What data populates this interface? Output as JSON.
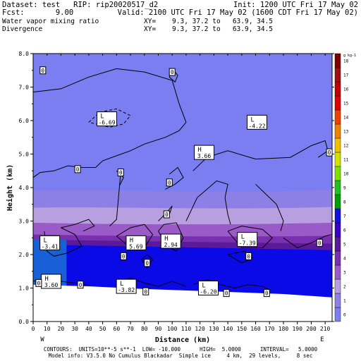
{
  "header": {
    "line1_left": "Dataset: test   RIP: rip20020517_d2",
    "line1_right": "Init: 1200 UTC Fri 17 May 02",
    "line2_left": "Fcst:       9.00",
    "line2_right": "Valid: 2100 UTC Fri 17 May 02 (1600 CDT Fri 17 May 02)",
    "line3_left": "Water vapor mixing ratio",
    "line3_right": "XY=    9.3, 37.2 to   63.9, 34.5",
    "line4_left": "Divergence",
    "line4_right": "XY=    9.3, 37.2 to   63.9, 34.5"
  },
  "chart_data": {
    "type": "heatmap",
    "xlabel": "Distance (km)",
    "ylabel": "Height (km)",
    "xlim": [
      0,
      215
    ],
    "ylim": [
      0,
      8
    ],
    "x_ticks": [
      "0",
      "10",
      "20",
      "30",
      "40",
      "50",
      "60",
      "70",
      "80",
      "90",
      "100",
      "110",
      "120",
      "130",
      "140",
      "150",
      "160",
      "170",
      "180",
      "190",
      "200",
      "210"
    ],
    "y_ticks": [
      "0.0",
      "1.0",
      "2.0",
      "3.0",
      "4.0",
      "5.0",
      "6.0",
      "7.0",
      "8.0"
    ],
    "x_end_labels": {
      "left": "W",
      "right": "E"
    },
    "colorbar": {
      "unit_label": "g kg-1",
      "levels": [
        "0",
        "1",
        "2",
        "3",
        "4",
        "5",
        "6",
        "7",
        "8",
        "9",
        "10",
        "11",
        "12",
        "13",
        "14",
        "15",
        "16",
        "17",
        "18"
      ],
      "colors": [
        "#7a7ef0",
        "#8e7fe6",
        "#b8a0e0",
        "#9a5ac8",
        "#7a2fb0",
        "#5a1a9a",
        "#3a00c8",
        "#1010e0",
        "#00a000",
        "#20c020",
        "#80e000",
        "#d0e000",
        "#f0c000",
        "#f08000",
        "#f04000",
        "#e00000",
        "#c00000",
        "#a01010",
        "#800000"
      ]
    },
    "field_bands_top_km": {
      "0-1": 8.0,
      "1-2": 3.9,
      "2-3": 3.4,
      "3-4": 2.95,
      "4-5": 2.6,
      "5-6": 2.45,
      "6-7": 2.3
    },
    "extrema_labels": [
      {
        "kind": "L",
        "value": "-6.69",
        "x": 53,
        "y": 6.05
      },
      {
        "kind": "L",
        "value": "-4.22",
        "x": 161,
        "y": 5.95
      },
      {
        "kind": "H",
        "value": "3.66",
        "x": 123,
        "y": 5.05
      },
      {
        "kind": "L",
        "value": "-3.41",
        "x": 12,
        "y": 2.35
      },
      {
        "kind": "H",
        "value": "5.69",
        "x": 74,
        "y": 2.35
      },
      {
        "kind": "H",
        "value": "2.94",
        "x": 99,
        "y": 2.4
      },
      {
        "kind": "L",
        "value": "-7.39",
        "x": 154,
        "y": 2.45
      },
      {
        "kind": "H",
        "value": "3.60",
        "x": 13,
        "y": 1.2
      },
      {
        "kind": "L",
        "value": "-3.82",
        "x": 67,
        "y": 1.05
      },
      {
        "kind": "L",
        "value": "-6.20",
        "x": 126,
        "y": 1.0
      }
    ],
    "zero_contour_labels": [
      {
        "value": "0",
        "x": 7,
        "y": 7.5
      },
      {
        "value": "0",
        "x": 100,
        "y": 7.45
      },
      {
        "value": "0",
        "x": 213,
        "y": 5.05
      },
      {
        "value": "0",
        "x": 32,
        "y": 4.55
      },
      {
        "value": "0",
        "x": 63,
        "y": 4.45
      },
      {
        "value": "0",
        "x": 98,
        "y": 4.15
      },
      {
        "value": "0",
        "x": 96,
        "y": 3.2
      },
      {
        "value": "0",
        "x": 206,
        "y": 2.35
      },
      {
        "value": "0",
        "x": 65,
        "y": 1.95
      },
      {
        "value": "0",
        "x": 155,
        "y": 1.95
      },
      {
        "value": "0",
        "x": 82,
        "y": 1.75
      },
      {
        "value": "0",
        "x": 4,
        "y": 1.15
      },
      {
        "value": "0",
        "x": 34,
        "y": 1.1
      },
      {
        "value": "0",
        "x": 81,
        "y": 0.9
      },
      {
        "value": "0",
        "x": 139,
        "y": 0.85
      },
      {
        "value": "0",
        "x": 168,
        "y": 0.85
      }
    ]
  },
  "footer": {
    "line1": "CONTOURS:  UNITS=10**-5 s**-1  LOW= -10.000      HIGH=  5.0000      INTERVAL=   5.0000",
    "line2": "Model info: V3.5.0 No Cumulus Blackadar  Simple ice     4 km,  29 levels,     8 sec"
  }
}
